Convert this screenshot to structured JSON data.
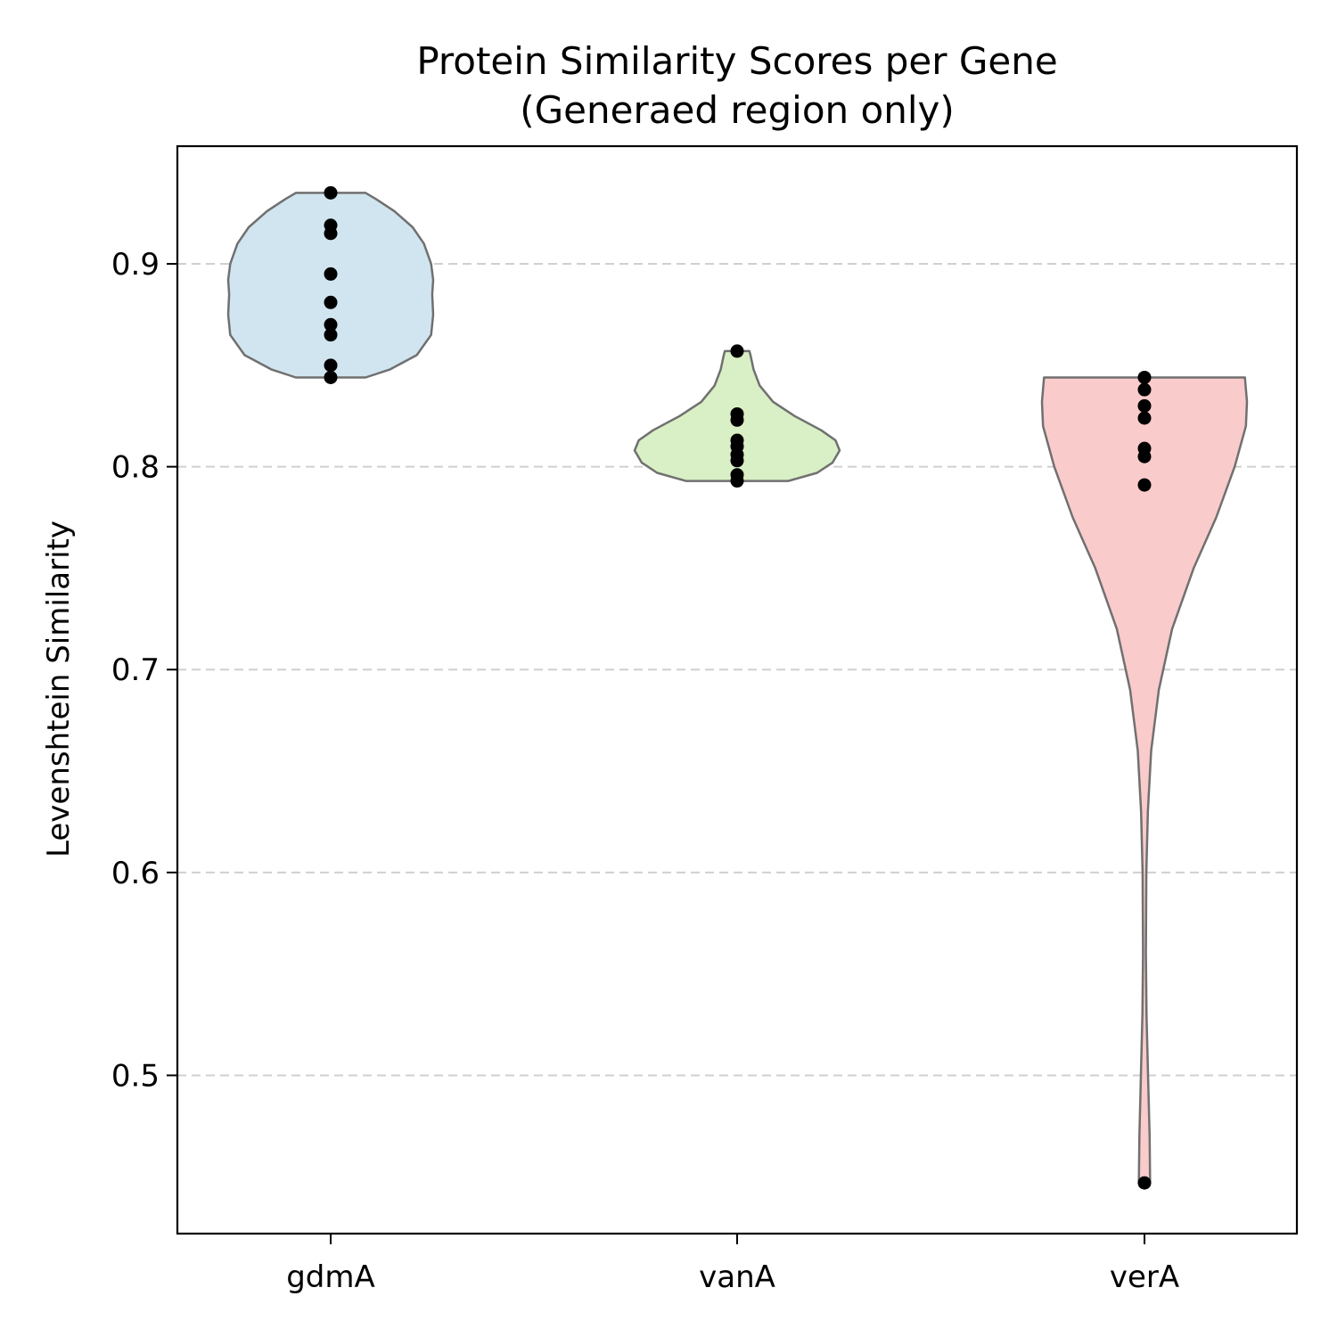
{
  "chart_data": {
    "type": "violin",
    "title_lines": [
      "Protein Similarity Scores per Gene",
      "(Generaed region only)"
    ],
    "xlabel": "",
    "ylabel": "Levenshtein Similarity",
    "ylim": [
      0.422,
      0.958
    ],
    "yticks": [
      0.5,
      0.6,
      0.7,
      0.8,
      0.9
    ],
    "ytick_labels": [
      "0.5",
      "0.6",
      "0.7",
      "0.8",
      "0.9"
    ],
    "grid": {
      "axis": "y",
      "style": "dashed",
      "color": "#d0d0d0"
    },
    "categories": [
      "gdmA",
      "vanA",
      "verA"
    ],
    "series": [
      {
        "category": "gdmA",
        "fill": "#d1e5f0",
        "edge": "#707070",
        "min": 0.844,
        "max": 0.935,
        "points": [
          0.935,
          0.919,
          0.915,
          0.895,
          0.881,
          0.87,
          0.865,
          0.85,
          0.844
        ],
        "density_profile": [
          [
            0.844,
            0.34
          ],
          [
            0.848,
            0.58
          ],
          [
            0.855,
            0.84
          ],
          [
            0.865,
            0.98
          ],
          [
            0.875,
            1.0
          ],
          [
            0.885,
            0.99
          ],
          [
            0.892,
            1.0
          ],
          [
            0.9,
            0.98
          ],
          [
            0.91,
            0.91
          ],
          [
            0.918,
            0.8
          ],
          [
            0.926,
            0.62
          ],
          [
            0.932,
            0.44
          ],
          [
            0.935,
            0.34
          ]
        ]
      },
      {
        "category": "vanA",
        "fill": "#d9efc5",
        "edge": "#707070",
        "min": 0.793,
        "max": 0.857,
        "points": [
          0.857,
          0.826,
          0.823,
          0.813,
          0.81,
          0.806,
          0.803,
          0.796,
          0.793
        ],
        "density_profile": [
          [
            0.793,
            0.5
          ],
          [
            0.797,
            0.78
          ],
          [
            0.802,
            0.93
          ],
          [
            0.808,
            1.0
          ],
          [
            0.813,
            0.96
          ],
          [
            0.818,
            0.82
          ],
          [
            0.825,
            0.56
          ],
          [
            0.832,
            0.35
          ],
          [
            0.84,
            0.22
          ],
          [
            0.848,
            0.16
          ],
          [
            0.855,
            0.13
          ],
          [
            0.857,
            0.12
          ]
        ]
      },
      {
        "category": "verA",
        "fill": "#facbcb",
        "edge": "#707070",
        "min": 0.447,
        "max": 0.844,
        "points": [
          0.844,
          0.838,
          0.83,
          0.824,
          0.809,
          0.805,
          0.791,
          0.447
        ],
        "density_profile": [
          [
            0.447,
            0.055
          ],
          [
            0.47,
            0.05
          ],
          [
            0.5,
            0.035
          ],
          [
            0.53,
            0.02
          ],
          [
            0.56,
            0.014
          ],
          [
            0.6,
            0.018
          ],
          [
            0.63,
            0.033
          ],
          [
            0.66,
            0.065
          ],
          [
            0.69,
            0.14
          ],
          [
            0.72,
            0.27
          ],
          [
            0.75,
            0.48
          ],
          [
            0.775,
            0.7
          ],
          [
            0.8,
            0.88
          ],
          [
            0.82,
            0.99
          ],
          [
            0.832,
            1.0
          ],
          [
            0.844,
            0.98
          ]
        ]
      }
    ],
    "point_color": "#000000"
  }
}
